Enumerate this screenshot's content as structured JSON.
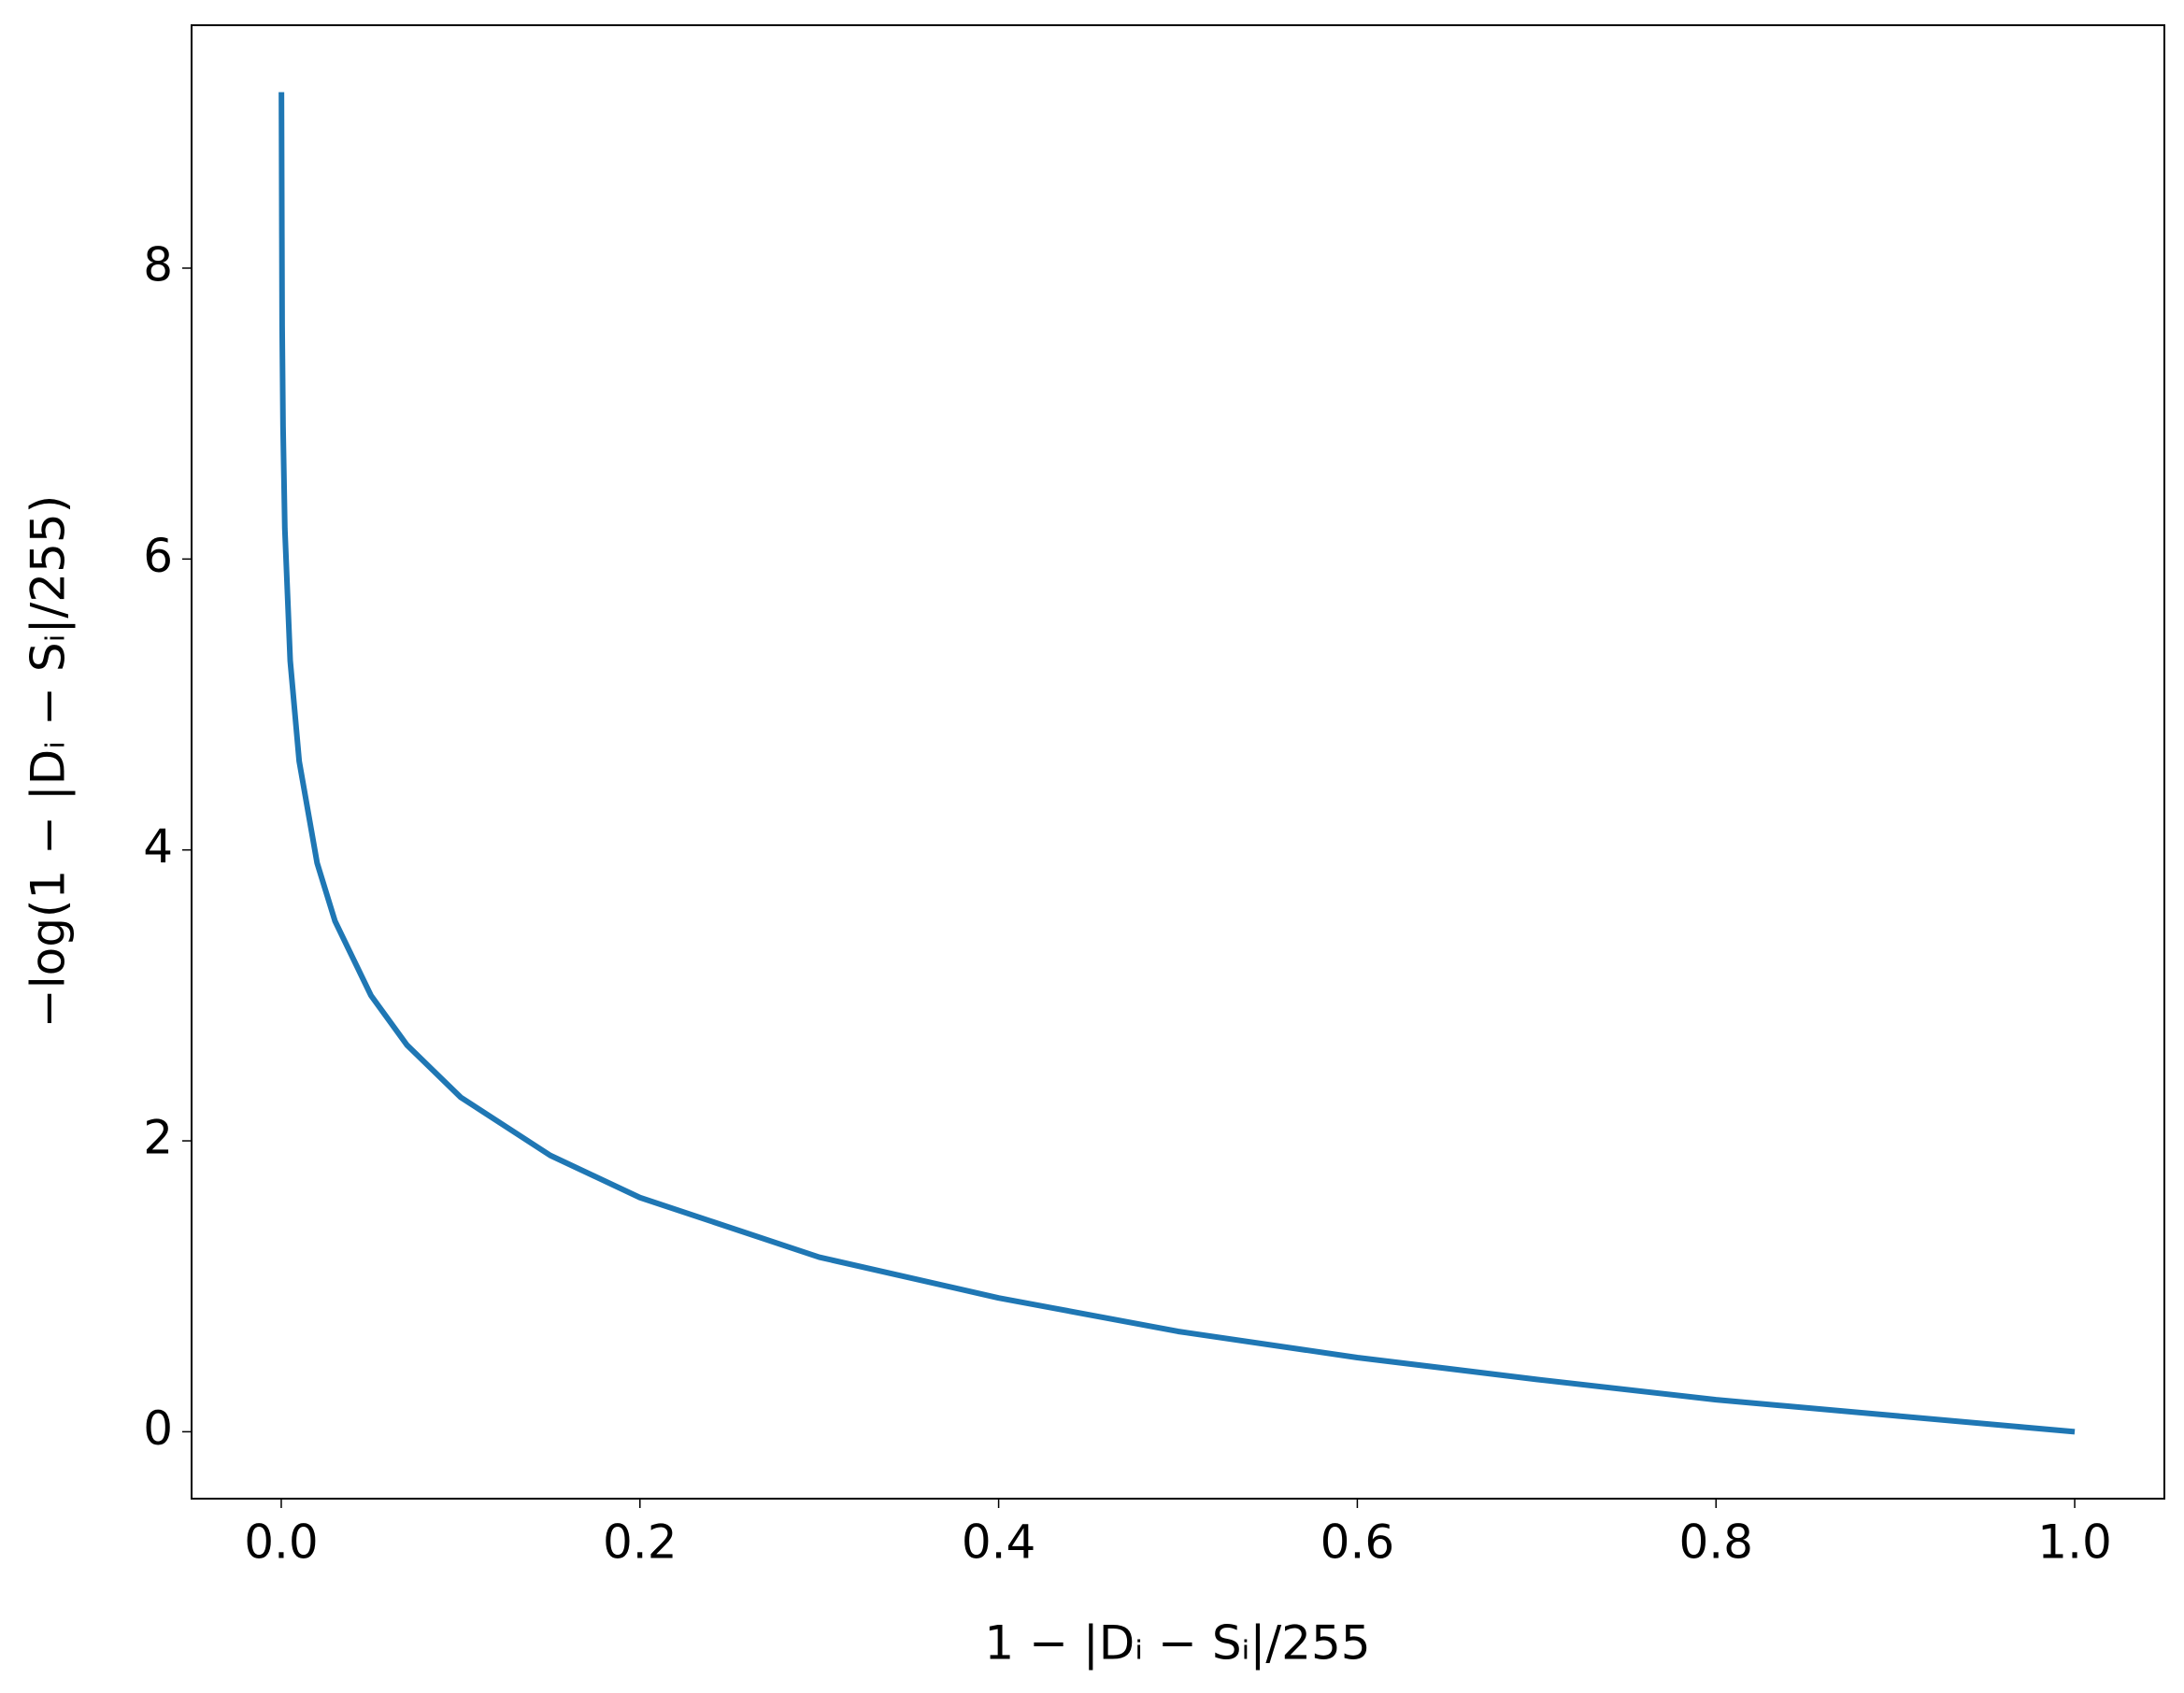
{
  "chart_data": {
    "type": "line",
    "x_label": "1 − |Dᵢ − Sᵢ|/255",
    "y_label": "−log(1 − |Dᵢ − Sᵢ|/255)",
    "x": [
      0.0001,
      0.0005,
      0.001,
      0.002,
      0.005,
      0.01,
      0.02,
      0.03,
      0.05,
      0.07,
      0.1,
      0.15,
      0.2,
      0.3,
      0.4,
      0.5,
      0.6,
      0.7,
      0.8,
      0.9,
      1.0
    ],
    "series": [
      {
        "color": "#1f77b4",
        "values": [
          9.21,
          7.6,
          6.91,
          6.21,
          5.3,
          4.61,
          3.91,
          3.51,
          3.0,
          2.66,
          2.3,
          1.9,
          1.61,
          1.2,
          0.92,
          0.69,
          0.51,
          0.36,
          0.22,
          0.11,
          0
        ]
      }
    ],
    "xlim": [
      -0.05,
      1.05
    ],
    "ylim": [
      -0.46,
      9.67
    ],
    "xticks": [
      {
        "value": 0,
        "label": "0.0"
      },
      0.2,
      0.4,
      0.6,
      0.8,
      {
        "value": 1,
        "label": "1.0"
      }
    ],
    "yticks": [
      0,
      2,
      4,
      6,
      8
    ],
    "grid": false
  }
}
